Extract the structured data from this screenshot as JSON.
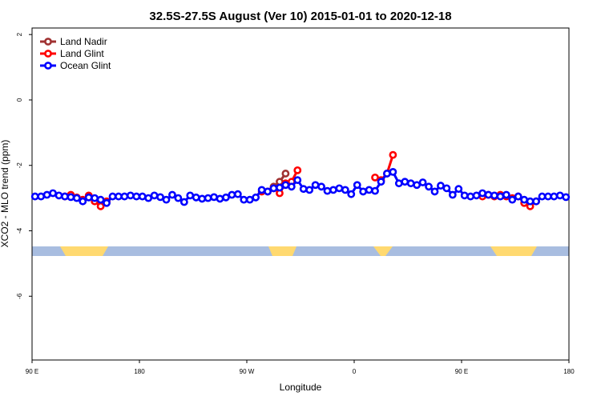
{
  "chart_data": {
    "type": "line",
    "title": "32.5S-27.5S August (Ver 10)   2015-01-01 to 2020-12-18",
    "xlabel": "Longitude",
    "ylabel": "XCO2 - MLO trend (ppm)",
    "xlim": [
      90,
      540
    ],
    "ylim": [
      -7.95,
      2.2
    ],
    "xticks": [
      {
        "value": 90,
        "label": "90 E"
      },
      180,
      {
        "value": 270,
        "label": "90 W"
      },
      {
        "value": 360,
        "label": "0"
      },
      {
        "value": 450,
        "label": "90 E"
      },
      {
        "value": 540,
        "label": "180"
      }
    ],
    "yticks": [
      2,
      0,
      -2,
      -4,
      -6
    ],
    "legend": "top-left",
    "x": [
      92.5,
      97.5,
      102.5,
      107.5,
      112.5,
      117.5,
      122.5,
      127.5,
      132.5,
      137.5,
      142.5,
      147.5,
      152.5,
      157.5,
      162.5,
      167.5,
      172.5,
      177.5,
      182.5,
      187.5,
      192.5,
      197.5,
      202.5,
      207.5,
      212.5,
      217.5,
      222.5,
      227.5,
      232.5,
      237.5,
      242.5,
      247.5,
      252.5,
      257.5,
      262.5,
      267.5,
      272.5,
      277.5,
      282.5,
      287.5,
      292.5,
      297.5,
      302.5,
      307.5,
      312.5,
      317.5,
      322.5,
      327.5,
      332.5,
      337.5,
      342.5,
      347.5,
      352.5,
      357.5,
      362.5,
      367.5,
      372.5,
      377.5,
      382.5,
      387.5,
      392.5,
      397.5,
      402.5,
      407.5,
      412.5,
      417.5,
      422.5,
      427.5,
      432.5,
      437.5,
      442.5,
      447.5,
      452.5,
      457.5,
      462.5,
      467.5,
      472.5,
      477.5,
      482.5,
      487.5,
      492.5,
      497.5,
      502.5,
      507.5,
      512.5,
      517.5,
      522.5,
      527.5,
      532.5,
      537.5
    ],
    "series": [
      {
        "name": "Land Nadir",
        "color": "#a03232",
        "values": [
          null,
          null,
          null,
          null,
          null,
          null,
          null,
          null,
          null,
          null,
          null,
          null,
          null,
          null,
          null,
          null,
          null,
          null,
          null,
          null,
          null,
          null,
          null,
          null,
          null,
          null,
          null,
          null,
          null,
          null,
          null,
          null,
          null,
          null,
          null,
          null,
          null,
          null,
          null,
          null,
          -2.65,
          -2.5,
          -2.25,
          null,
          null,
          null,
          null,
          null,
          null,
          null,
          null,
          null,
          null,
          null,
          null,
          null,
          null,
          null,
          null,
          null,
          null,
          null,
          null,
          null,
          null,
          null,
          null,
          null,
          null,
          null,
          null,
          null,
          null,
          null,
          null,
          null,
          null,
          null,
          null,
          null,
          null,
          null,
          null,
          null,
          null,
          null,
          null,
          null,
          null,
          null
        ]
      },
      {
        "name": "Land Glint",
        "color": "#ff0000",
        "values": [
          null,
          null,
          null,
          null,
          null,
          -2.95,
          -2.9,
          -2.98,
          -3.05,
          -2.92,
          -3.1,
          -3.25,
          -3.1,
          null,
          null,
          null,
          null,
          null,
          null,
          null,
          null,
          null,
          null,
          null,
          null,
          null,
          null,
          null,
          null,
          null,
          null,
          null,
          null,
          null,
          null,
          null,
          null,
          null,
          -2.8,
          -2.8,
          -2.7,
          -2.85,
          -2.55,
          -2.5,
          -2.15,
          null,
          null,
          null,
          null,
          null,
          null,
          null,
          null,
          null,
          null,
          null,
          null,
          -2.37,
          -2.45,
          -2.25,
          -1.68,
          null,
          null,
          null,
          null,
          null,
          null,
          null,
          null,
          null,
          null,
          null,
          null,
          null,
          null,
          -2.95,
          -2.9,
          -2.95,
          -2.9,
          -2.95,
          -3.0,
          -2.95,
          -3.15,
          -3.25,
          -3.1,
          null,
          null,
          null,
          null,
          null
        ]
      },
      {
        "name": "Ocean Glint",
        "color": "#0000ff",
        "values": [
          -2.95,
          -2.95,
          -2.9,
          -2.85,
          -2.92,
          -2.95,
          -2.97,
          -3.0,
          -3.1,
          -2.98,
          -3.0,
          -3.05,
          -3.15,
          -2.95,
          -2.95,
          -2.95,
          -2.92,
          -2.95,
          -2.95,
          -3.0,
          -2.92,
          -2.97,
          -3.05,
          -2.9,
          -3.0,
          -3.12,
          -2.92,
          -2.98,
          -3.02,
          -3.0,
          -2.97,
          -3.02,
          -2.98,
          -2.9,
          -2.88,
          -3.05,
          -3.05,
          -2.98,
          -2.75,
          -2.8,
          -2.7,
          -2.68,
          -2.6,
          -2.65,
          -2.45,
          -2.72,
          -2.75,
          -2.6,
          -2.65,
          -2.78,
          -2.75,
          -2.7,
          -2.75,
          -2.88,
          -2.6,
          -2.8,
          -2.75,
          -2.78,
          -2.5,
          -2.25,
          -2.2,
          -2.55,
          -2.5,
          -2.55,
          -2.6,
          -2.52,
          -2.65,
          -2.8,
          -2.62,
          -2.7,
          -2.9,
          -2.72,
          -2.92,
          -2.95,
          -2.92,
          -2.85,
          -2.9,
          -2.92,
          -2.95,
          -2.9,
          -3.05,
          -2.95,
          -3.05,
          -3.1,
          -3.1,
          -2.95,
          -2.95,
          -2.95,
          -2.92,
          -2.97
        ]
      }
    ]
  }
}
